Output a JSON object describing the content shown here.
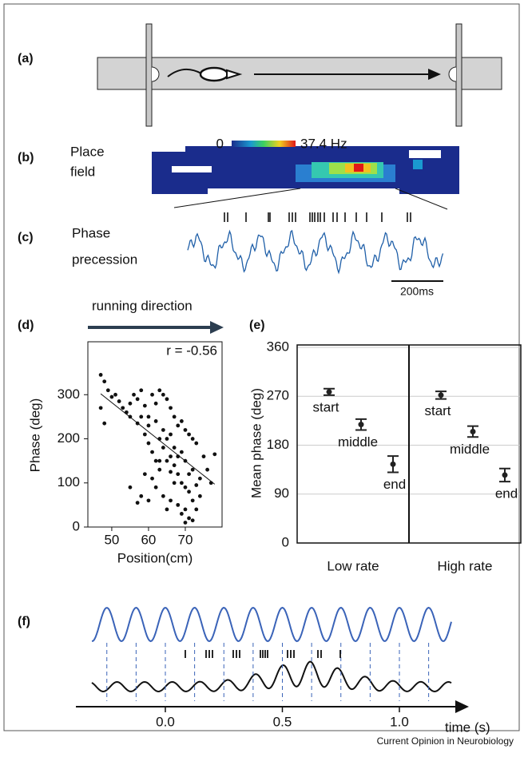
{
  "panels": {
    "a": {
      "label": "(a)"
    },
    "b": {
      "label": "(b)",
      "title_lines": [
        "Place",
        "field"
      ],
      "colorbar_min": "0",
      "colorbar_max": "37.4 Hz"
    },
    "c": {
      "label": "(c)",
      "title_lines": [
        "Phase",
        "precession"
      ],
      "scale_bar": "200ms"
    },
    "f": {
      "label": "(f)",
      "xlabel": "time (s)",
      "xticks": [
        {
          "value": 0,
          "label": "0.0"
        },
        0.5,
        {
          "value": 1,
          "label": "1.0"
        }
      ]
    }
  },
  "footer": "Current Opinion in Neurobiology",
  "chart_data": [
    {
      "type": "scatter",
      "panel_label": "(d)",
      "header": "running direction",
      "annotation": "r = -0.56",
      "xlabel": "Position(cm)",
      "ylabel": "Phase (deg)",
      "color": "#111111",
      "x": [
        47,
        48,
        49,
        50,
        47,
        48,
        51,
        52,
        53,
        54,
        55,
        56,
        57,
        58,
        59,
        60,
        61,
        62,
        63,
        64,
        65,
        66,
        67,
        68,
        69,
        70,
        71,
        72,
        73,
        55,
        57,
        59,
        60,
        61,
        62,
        63,
        64,
        65,
        66,
        67,
        68,
        69,
        70,
        71,
        72,
        73,
        71,
        70,
        69,
        68,
        66,
        65,
        64,
        62,
        60,
        58,
        57,
        55,
        59,
        61,
        63,
        64,
        66,
        67,
        68,
        70,
        72,
        74,
        75,
        76,
        77,
        78,
        74,
        73,
        71,
        69,
        67,
        65,
        63,
        60,
        58,
        62,
        66,
        70,
        72
      ],
      "y": [
        345,
        330,
        310,
        295,
        270,
        235,
        300,
        285,
        270,
        260,
        280,
        300,
        290,
        310,
        275,
        250,
        300,
        280,
        310,
        300,
        290,
        270,
        250,
        230,
        240,
        220,
        210,
        200,
        190,
        250,
        235,
        210,
        190,
        170,
        150,
        130,
        180,
        200,
        160,
        140,
        120,
        100,
        90,
        80,
        60,
        40,
        20,
        10,
        30,
        50,
        60,
        40,
        70,
        90,
        60,
        70,
        55,
        90,
        120,
        110,
        150,
        220,
        210,
        180,
        160,
        150,
        130,
        110,
        160,
        130,
        100,
        165,
        70,
        95,
        120,
        170,
        100,
        150,
        200,
        230,
        250,
        240,
        125,
        40,
        15
      ],
      "fit": {
        "x": [
          47,
          78
        ],
        "y": [
          302,
          97
        ]
      },
      "xlim": [
        43.5,
        80
      ],
      "ylim": [
        0,
        420
      ],
      "xticks": [
        50,
        60,
        70
      ],
      "yticks": [
        0,
        100,
        200,
        300
      ]
    },
    {
      "type": "errorbar",
      "panel_label": "(e)",
      "ylabel": "Mean phase (deg)",
      "color": "#222222",
      "grid": true,
      "group_labels": [
        "Low rate",
        "High rate"
      ],
      "categories": [
        "start",
        "middle",
        "end",
        "start",
        "middle",
        "end"
      ],
      "values": [
        278,
        218,
        145,
        272,
        205,
        125
      ],
      "errors": [
        6,
        10,
        15,
        7,
        10,
        12
      ],
      "ylim": [
        0,
        360
      ],
      "yticks": [
        0,
        90,
        180,
        270,
        360
      ]
    }
  ]
}
